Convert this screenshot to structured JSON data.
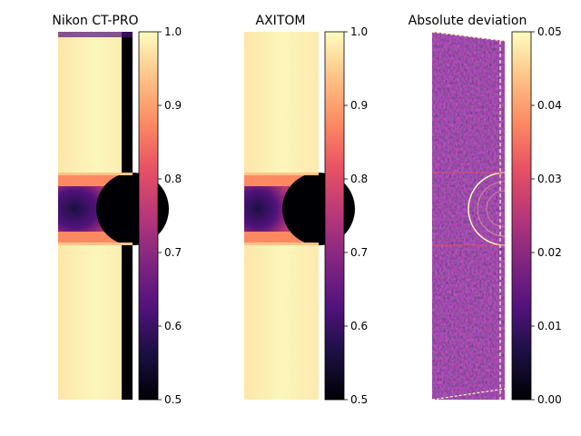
{
  "figure": {
    "panels": [
      {
        "title": "Nikon CT-PRO"
      },
      {
        "title": "AXITOM"
      },
      {
        "title": "Absolute deviation"
      }
    ]
  },
  "chart_data": [
    {
      "type": "heatmap",
      "title": "Nikon CT-PRO",
      "colormap": "magma",
      "colorbar": {
        "range": [
          0.5,
          1.0
        ],
        "ticks": [
          "0.5",
          "0.6",
          "0.7",
          "0.8",
          "0.9",
          "1.0"
        ]
      },
      "axes_visible": false
    },
    {
      "type": "heatmap",
      "title": "AXITOM",
      "colormap": "magma",
      "colorbar": {
        "range": [
          0.5,
          1.0
        ],
        "ticks": [
          "0.5",
          "0.6",
          "0.7",
          "0.8",
          "0.9",
          "1.0"
        ]
      },
      "axes_visible": false
    },
    {
      "type": "heatmap",
      "title": "Absolute deviation",
      "colormap": "magma",
      "colorbar": {
        "range": [
          0.0,
          0.05
        ],
        "ticks": [
          "0.00",
          "0.01",
          "0.02",
          "0.03",
          "0.04",
          "0.05"
        ]
      },
      "axes_visible": false
    }
  ],
  "colors": {
    "magma_dark": "#000004",
    "magma_purple": "#51127c",
    "magma_magenta": "#b73779",
    "magma_orange": "#fc8961",
    "magma_light": "#fcfdbf"
  }
}
